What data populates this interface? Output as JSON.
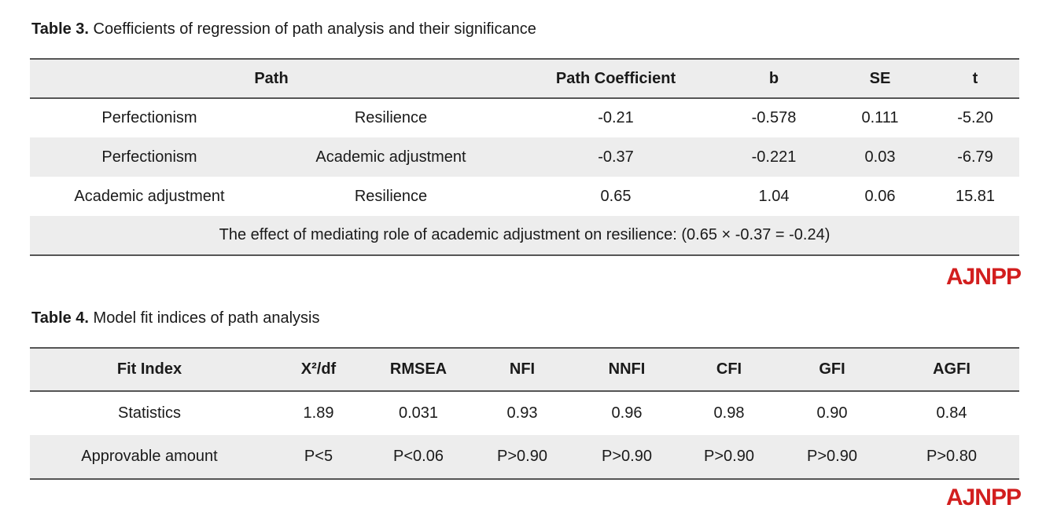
{
  "table3": {
    "caption_label": "Table 3.",
    "caption_text": " Coefficients of regression of path analysis and their significance",
    "headers": {
      "path": "Path",
      "coef": "Path Coefficient",
      "b": "b",
      "se": "SE",
      "t": "t"
    },
    "rows": [
      {
        "from": "Perfectionism",
        "to": "Resilience",
        "coef": "-0.21",
        "b": "-0.578",
        "se": "0.111",
        "t": "-5.20"
      },
      {
        "from": "Perfectionism",
        "to": "Academic adjustment",
        "coef": "-0.37",
        "b": "-0.221",
        "se": "0.03",
        "t": "-6.79"
      },
      {
        "from": "Academic adjustment",
        "to": "Resilience",
        "coef": "0.65",
        "b": "1.04",
        "se": "0.06",
        "t": "15.81"
      }
    ],
    "footer": "The effect of mediating role of academic adjustment on resilience: (0.65 × -0.37 = -0.24)"
  },
  "table4": {
    "caption_label": "Table 4.",
    "caption_text": " Model fit indices of path analysis",
    "headers": [
      "Fit Index",
      "X²/df",
      "RMSEA",
      "NFI",
      "NNFI",
      "CFI",
      "GFI",
      "AGFI"
    ],
    "rows": [
      [
        "Statistics",
        "1.89",
        "0.031",
        "0.93",
        "0.96",
        "0.98",
        "0.90",
        "0.84"
      ],
      [
        "Approvable amount",
        "P<5",
        "P<0.06",
        "P>0.90",
        "P>0.90",
        "P>0.90",
        "P>0.90",
        "P>0.80"
      ]
    ]
  },
  "logo": {
    "text": "AJNPP",
    "color": "#d21e1e"
  }
}
